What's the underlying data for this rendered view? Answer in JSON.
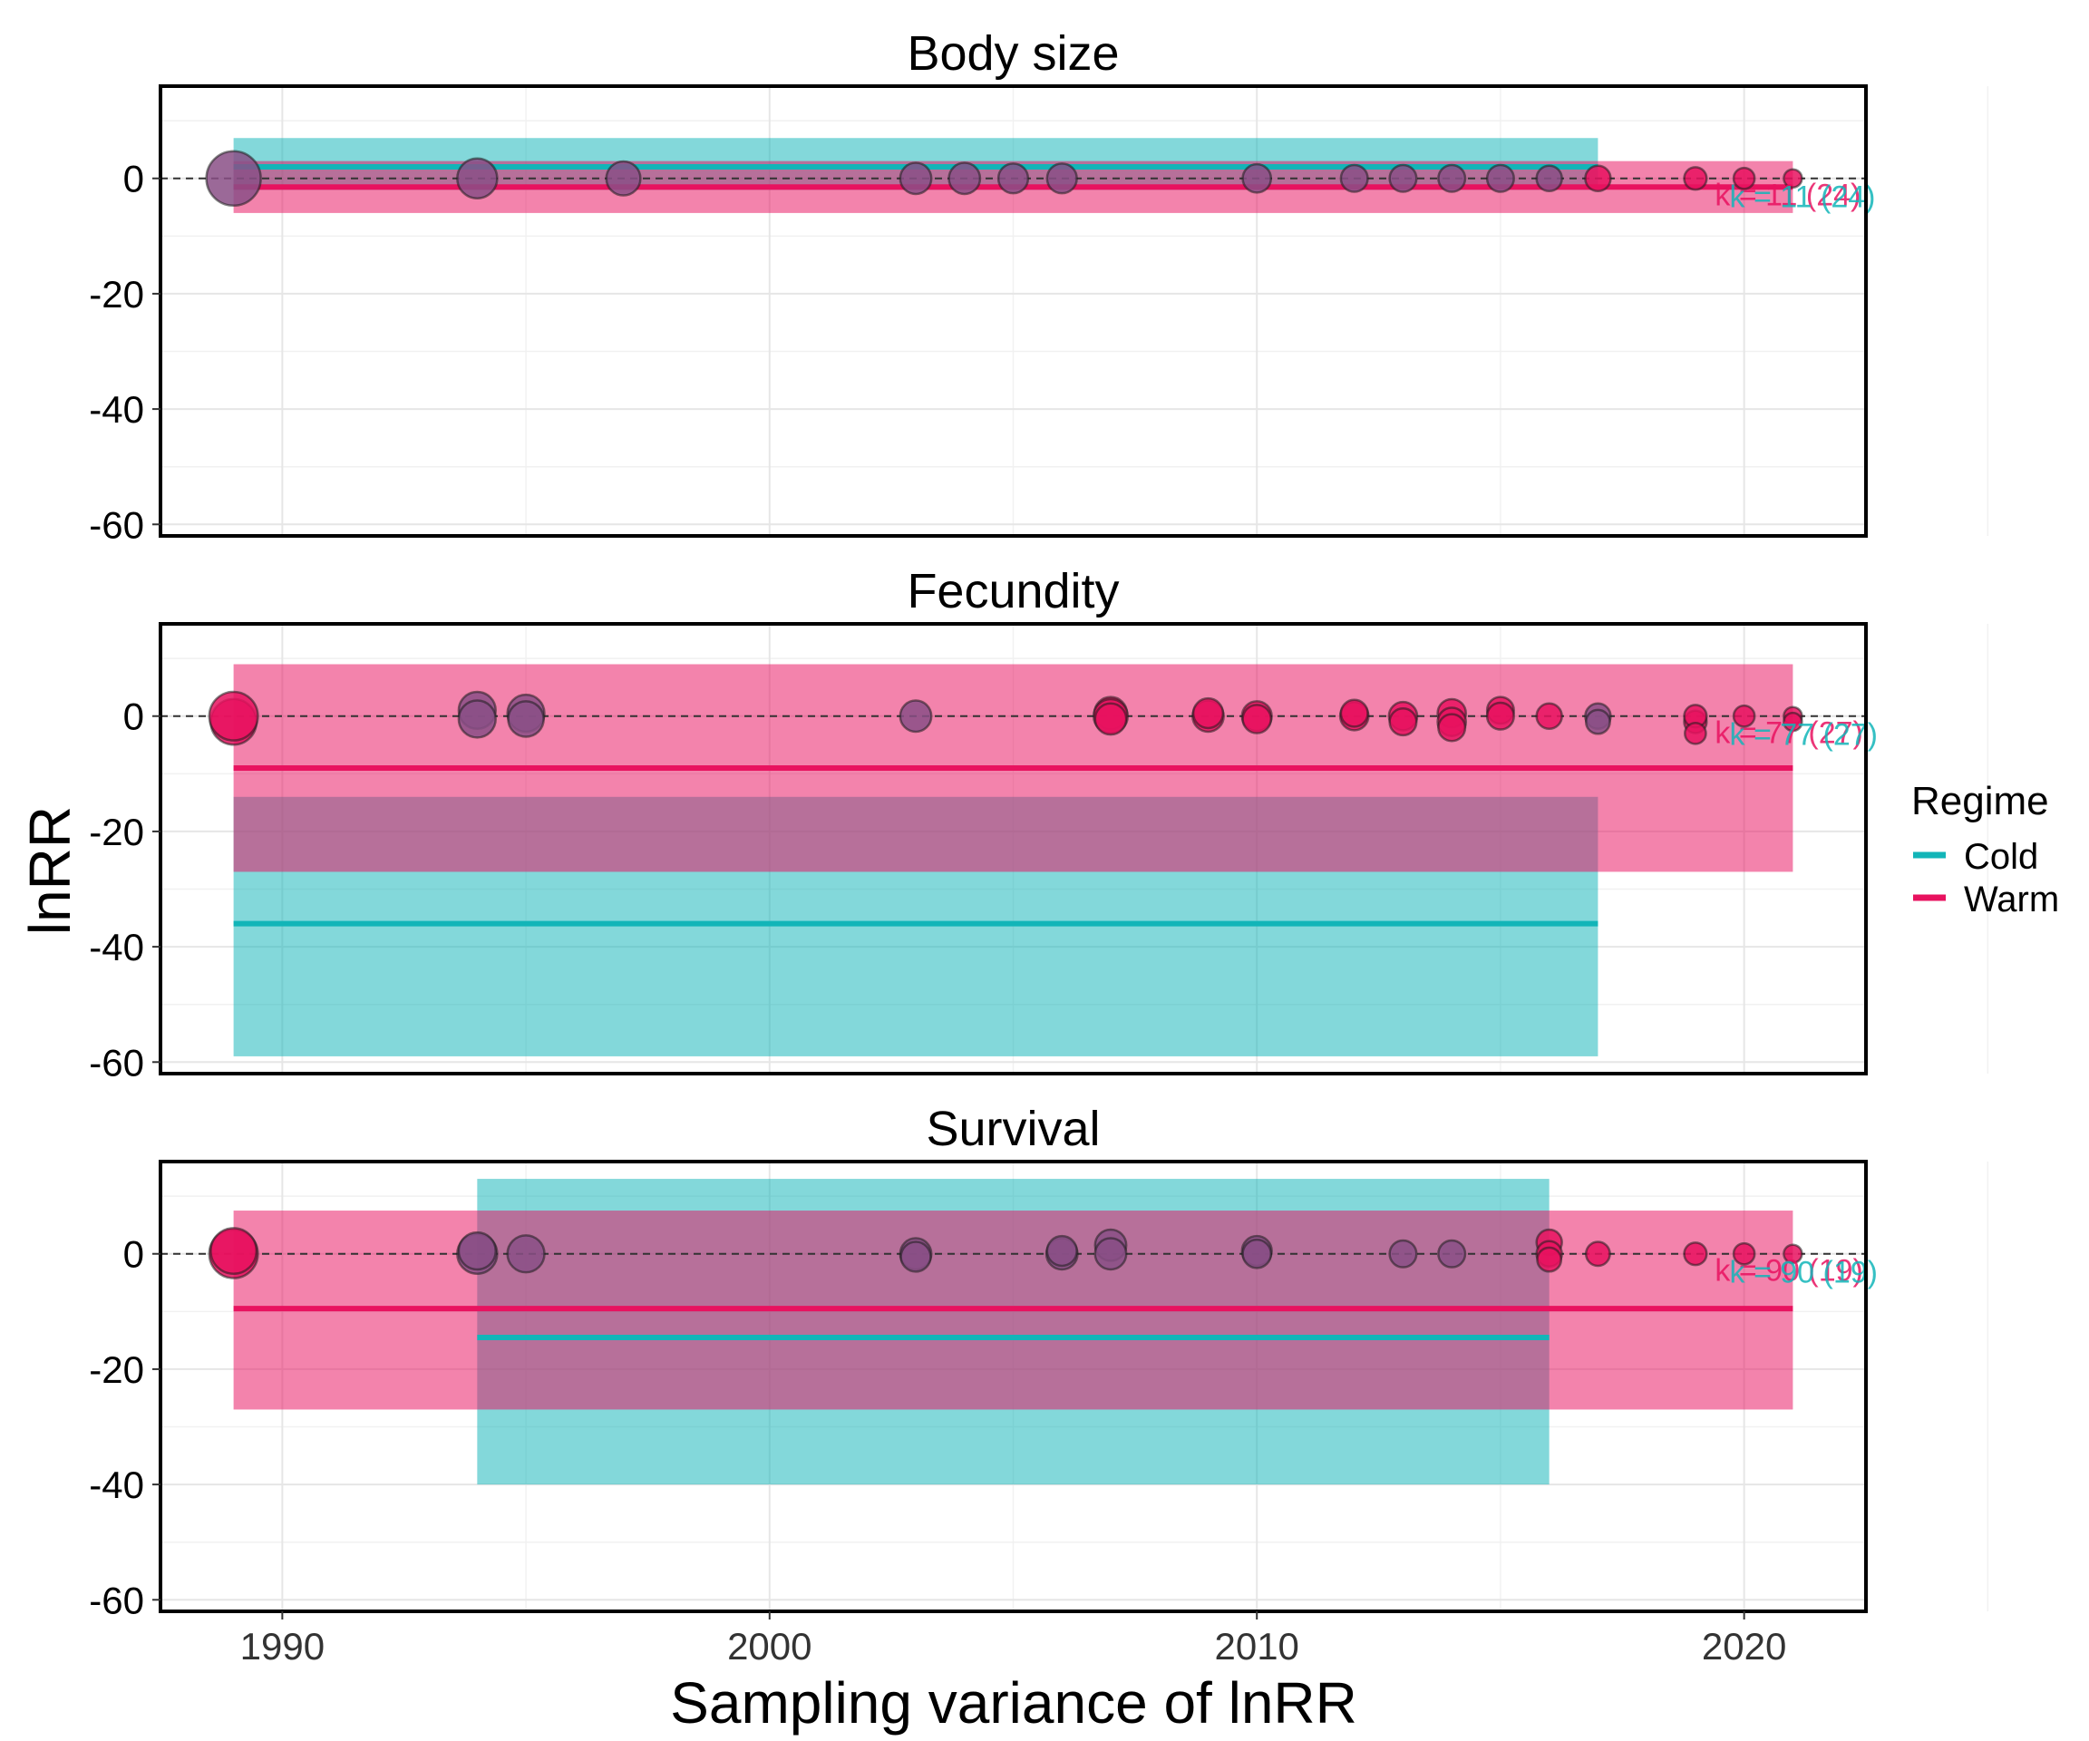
{
  "figure": {
    "ylabel": "lnRR",
    "xlabel": "Sampling variance of lnRR",
    "legend": {
      "title": "Regime",
      "items": [
        {
          "label": "Cold",
          "color": "#12b5b8"
        },
        {
          "label": "Warm",
          "color": "#e8125f"
        }
      ]
    }
  },
  "chart_data": [
    {
      "type": "scatter",
      "title": "Body size",
      "xlim": [
        1987.5,
        2022.5
      ],
      "ylim": [
        -62,
        16
      ],
      "x_ticks": [
        1990,
        2000,
        2010,
        2020
      ],
      "y_ticks": [
        0,
        -20,
        -40,
        -60
      ],
      "annotation_text": "k = 11 (24)",
      "points": [
        {
          "x": 1989,
          "y": 0,
          "w": 30,
          "c": "purple"
        },
        {
          "x": 1994,
          "y": 0,
          "w": 20,
          "c": "purple"
        },
        {
          "x": 1997,
          "y": 0,
          "w": 16,
          "c": "purple"
        },
        {
          "x": 2003,
          "y": 0,
          "w": 14,
          "c": "purple"
        },
        {
          "x": 2004,
          "y": 0,
          "w": 14,
          "c": "purple"
        },
        {
          "x": 2005,
          "y": 0,
          "w": 13,
          "c": "purple"
        },
        {
          "x": 2006,
          "y": 0,
          "w": 13,
          "c": "purple"
        },
        {
          "x": 2010,
          "y": 0,
          "w": 12,
          "c": "purple"
        },
        {
          "x": 2012,
          "y": 0,
          "w": 11,
          "c": "purple"
        },
        {
          "x": 2013,
          "y": 0,
          "w": 11,
          "c": "purple"
        },
        {
          "x": 2014,
          "y": 0,
          "w": 11,
          "c": "purple"
        },
        {
          "x": 2015,
          "y": 0,
          "w": 11,
          "c": "purple"
        },
        {
          "x": 2016,
          "y": 0,
          "w": 10,
          "c": "purple"
        },
        {
          "x": 2017,
          "y": 0,
          "w": 10,
          "c": "warm"
        },
        {
          "x": 2019,
          "y": 0,
          "w": 8,
          "c": "warm"
        },
        {
          "x": 2020,
          "y": 0,
          "w": 7,
          "c": "warm"
        },
        {
          "x": 2021,
          "y": 0,
          "w": 5,
          "c": "warm"
        }
      ],
      "series": [
        {
          "name": "Cold",
          "x_range": [
            1989,
            2017
          ],
          "estimate": 2,
          "ci": [
            -2,
            7
          ]
        },
        {
          "name": "Warm",
          "x_range": [
            1989,
            2021
          ],
          "estimate": -1.5,
          "ci": [
            -6,
            3
          ]
        }
      ]
    },
    {
      "type": "scatter",
      "title": "Fecundity",
      "xlim": [
        1987.5,
        2022.5
      ],
      "ylim": [
        -62,
        16
      ],
      "x_ticks": [
        1990,
        2000,
        2010,
        2020
      ],
      "y_ticks": [
        0,
        -20,
        -40,
        -60
      ],
      "annotation_text": "k = 77 (27)",
      "points": [
        {
          "x": 1989,
          "y": -1,
          "w": 24,
          "c": "warm"
        },
        {
          "x": 1989,
          "y": 0,
          "w": 26,
          "c": "warm"
        },
        {
          "x": 1994,
          "y": 1,
          "w": 18,
          "c": "purple"
        },
        {
          "x": 1994,
          "y": -0.5,
          "w": 18,
          "c": "purple"
        },
        {
          "x": 1995,
          "y": 0.5,
          "w": 18,
          "c": "purple"
        },
        {
          "x": 1995,
          "y": -0.5,
          "w": 17,
          "c": "purple"
        },
        {
          "x": 2003,
          "y": 0,
          "w": 14,
          "c": "purple"
        },
        {
          "x": 2007,
          "y": 0.5,
          "w": 15,
          "c": "warm"
        },
        {
          "x": 2007,
          "y": 0,
          "w": 16,
          "c": "warm"
        },
        {
          "x": 2007,
          "y": -0.5,
          "w": 14,
          "c": "warm"
        },
        {
          "x": 2009,
          "y": 0,
          "w": 14,
          "c": "warm"
        },
        {
          "x": 2009,
          "y": 0.5,
          "w": 13,
          "c": "warm"
        },
        {
          "x": 2010,
          "y": 0,
          "w": 13,
          "c": "warm"
        },
        {
          "x": 2010,
          "y": -0.5,
          "w": 12,
          "c": "warm"
        },
        {
          "x": 2012,
          "y": 0,
          "w": 12,
          "c": "warm"
        },
        {
          "x": 2012,
          "y": 0.5,
          "w": 11,
          "c": "warm"
        },
        {
          "x": 2013,
          "y": 0,
          "w": 12,
          "c": "warm"
        },
        {
          "x": 2013,
          "y": -1,
          "w": 11,
          "c": "warm"
        },
        {
          "x": 2014,
          "y": 0.5,
          "w": 12,
          "c": "warm"
        },
        {
          "x": 2014,
          "y": -1,
          "w": 12,
          "c": "warm"
        },
        {
          "x": 2014,
          "y": -2,
          "w": 11,
          "c": "warm"
        },
        {
          "x": 2015,
          "y": 1,
          "w": 11,
          "c": "warm"
        },
        {
          "x": 2015,
          "y": 0,
          "w": 11,
          "c": "warm"
        },
        {
          "x": 2016,
          "y": 0,
          "w": 10,
          "c": "warm"
        },
        {
          "x": 2017,
          "y": 0,
          "w": 10,
          "c": "purple"
        },
        {
          "x": 2017,
          "y": -1,
          "w": 9,
          "c": "purple"
        },
        {
          "x": 2019,
          "y": -1,
          "w": 8,
          "c": "warm"
        },
        {
          "x": 2019,
          "y": 0,
          "w": 8,
          "c": "warm"
        },
        {
          "x": 2019,
          "y": -3,
          "w": 7,
          "c": "warm"
        },
        {
          "x": 2020,
          "y": 0,
          "w": 7,
          "c": "warm"
        },
        {
          "x": 2021,
          "y": 0,
          "w": 5,
          "c": "warm"
        },
        {
          "x": 2021,
          "y": -1,
          "w": 5,
          "c": "warm"
        }
      ],
      "series": [
        {
          "name": "Cold",
          "x_range": [
            1989,
            2017
          ],
          "estimate": -36,
          "ci": [
            -59,
            -14
          ]
        },
        {
          "name": "Warm",
          "x_range": [
            1989,
            2021
          ],
          "estimate": -9,
          "ci": [
            -27,
            9
          ]
        }
      ]
    },
    {
      "type": "scatter",
      "title": "Survival",
      "xlim": [
        1987.5,
        2022.5
      ],
      "ylim": [
        -62,
        16
      ],
      "x_ticks": [
        1990,
        2000,
        2010,
        2020
      ],
      "y_ticks": [
        0,
        -20,
        -40,
        -60
      ],
      "annotation_text": "k = 90 (19)",
      "points": [
        {
          "x": 1989,
          "y": 0,
          "w": 26,
          "c": "warm"
        },
        {
          "x": 1989,
          "y": 0.5,
          "w": 24,
          "c": "warm"
        },
        {
          "x": 1994,
          "y": 0,
          "w": 20,
          "c": "purple"
        },
        {
          "x": 1994,
          "y": 0.5,
          "w": 18,
          "c": "purple"
        },
        {
          "x": 1995,
          "y": 0,
          "w": 18,
          "c": "purple"
        },
        {
          "x": 2003,
          "y": 0,
          "w": 14,
          "c": "purple"
        },
        {
          "x": 2003,
          "y": -0.5,
          "w": 13,
          "c": "purple"
        },
        {
          "x": 2006,
          "y": 0,
          "w": 14,
          "c": "purple"
        },
        {
          "x": 2006,
          "y": 0.5,
          "w": 13,
          "c": "purple"
        },
        {
          "x": 2007,
          "y": 1.5,
          "w": 14,
          "c": "purple"
        },
        {
          "x": 2007,
          "y": 0,
          "w": 14,
          "c": "purple"
        },
        {
          "x": 2010,
          "y": 0.5,
          "w": 13,
          "c": "purple"
        },
        {
          "x": 2010,
          "y": 0,
          "w": 12,
          "c": "purple"
        },
        {
          "x": 2013,
          "y": 0,
          "w": 11,
          "c": "purple"
        },
        {
          "x": 2014,
          "y": 0,
          "w": 11,
          "c": "purple"
        },
        {
          "x": 2016,
          "y": 2,
          "w": 10,
          "c": "warm"
        },
        {
          "x": 2016,
          "y": 0,
          "w": 10,
          "c": "warm"
        },
        {
          "x": 2016,
          "y": -1,
          "w": 9,
          "c": "warm"
        },
        {
          "x": 2017,
          "y": 0,
          "w": 9,
          "c": "warm"
        },
        {
          "x": 2019,
          "y": 0,
          "w": 8,
          "c": "warm"
        },
        {
          "x": 2020,
          "y": 0,
          "w": 7,
          "c": "warm"
        },
        {
          "x": 2021,
          "y": 0,
          "w": 5,
          "c": "warm"
        }
      ],
      "series": [
        {
          "name": "Cold",
          "x_range": [
            1994,
            2016
          ],
          "estimate": -14.5,
          "ci": [
            -40,
            13
          ]
        },
        {
          "name": "Warm",
          "x_range": [
            1989,
            2021
          ],
          "estimate": -9.5,
          "ci": [
            -27,
            7.5
          ]
        }
      ]
    }
  ]
}
